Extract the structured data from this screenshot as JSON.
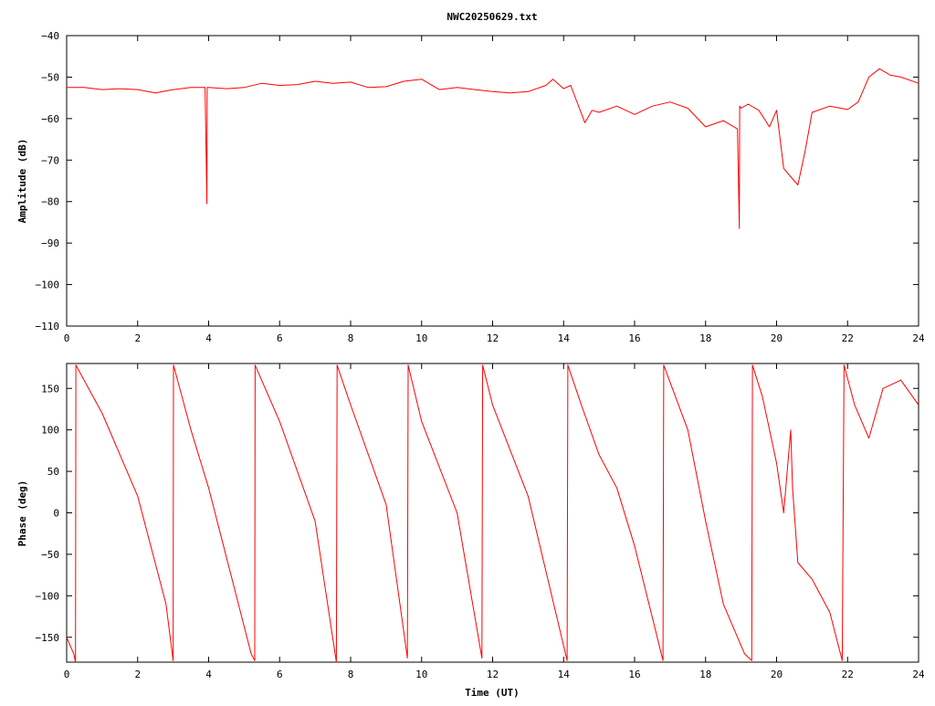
{
  "chart_data": [
    {
      "type": "line",
      "title": "NWC20250629.txt",
      "xlabel": "",
      "ylabel": "Amplitude (dB)",
      "xlim": [
        0,
        24
      ],
      "ylim": [
        -110,
        -40
      ],
      "x_ticks": [
        "0",
        "2",
        "4",
        "6",
        "8",
        "10",
        "12",
        "14",
        "16",
        "18",
        "20",
        "22",
        "24"
      ],
      "y_ticks": [
        "−110",
        "−100",
        "−90",
        "−80",
        "−70",
        "−60",
        "−50",
        "−40"
      ],
      "line_color": "#ff0000",
      "grid": false,
      "series": [
        {
          "x": [
            0,
            0.5,
            1,
            1.5,
            2,
            2.5,
            3,
            3.5,
            3.9,
            3.95,
            3.96,
            4.0,
            4.5,
            5,
            5.5,
            6,
            6.5,
            7,
            7.5,
            8,
            8.5,
            9,
            9.5,
            10,
            10.5,
            11,
            11.5,
            12,
            12.5,
            13,
            13.5,
            13.7,
            14,
            14.2,
            14.4,
            14.6,
            14.8,
            15,
            15.5,
            16,
            16.5,
            17,
            17.5,
            18,
            18.5,
            18.9,
            18.95,
            18.96,
            19.0,
            19.2,
            19.5,
            19.8,
            20,
            20.2,
            20.4,
            20.6,
            20.8,
            21,
            21.5,
            22,
            22.3,
            22.6,
            22.9,
            23.2,
            23.5,
            24
          ],
          "y": [
            -52.5,
            -52.5,
            -53,
            -52.8,
            -53,
            -53.8,
            -53,
            -52.5,
            -52.5,
            -80.5,
            -52.5,
            -52.5,
            -52.8,
            -52.5,
            -51.5,
            -52,
            -51.8,
            -51,
            -51.5,
            -51.2,
            -52.5,
            -52.3,
            -51,
            -50.5,
            -53,
            -52.5,
            -53,
            -53.5,
            -53.8,
            -53.5,
            -52,
            -50.5,
            -52.8,
            -52,
            -56.5,
            -61,
            -58,
            -58.5,
            -57,
            -59,
            -57,
            -56,
            -57.5,
            -62,
            -60.5,
            -62.5,
            -86.5,
            -57,
            -57.5,
            -56.5,
            -58,
            -62,
            -58,
            -72,
            -74,
            -76,
            -68,
            -58.5,
            -57,
            -57.8,
            -56,
            -50,
            -48,
            -49.5,
            -50,
            -51.5
          ]
        }
      ]
    },
    {
      "type": "line",
      "title": "",
      "xlabel": "Time (UT)",
      "ylabel": "Phase (deg)",
      "xlim": [
        0,
        24
      ],
      "ylim": [
        -180,
        180
      ],
      "x_ticks": [
        "0",
        "2",
        "4",
        "6",
        "8",
        "10",
        "12",
        "14",
        "16",
        "18",
        "20",
        "22",
        "24"
      ],
      "y_ticks": [
        "−150",
        "−100",
        "−50",
        "0",
        "50",
        "100",
        "150"
      ],
      "line_color": "#ff0000",
      "grid": false,
      "series": [
        {
          "x": [
            0,
            0.2,
            0.25,
            0.26,
            1,
            2,
            2.8,
            3,
            3.01,
            3.5,
            4,
            5.2,
            5.3,
            5.31,
            6,
            7,
            7.6,
            7.62,
            8,
            9,
            9.6,
            9.62,
            10,
            11,
            11.7,
            11.72,
            12,
            13,
            14.1,
            14.12,
            14.5,
            15,
            15.5,
            16,
            16.8,
            16.82,
            17.5,
            18,
            18.5,
            19.1,
            19.3,
            19.32,
            19.6,
            20,
            20.2,
            20.4,
            20.45,
            20.6,
            21,
            21.5,
            21.85,
            21.9,
            22.2,
            22.6,
            23,
            23.5,
            24
          ],
          "y": [
            -150,
            -170,
            -180,
            178,
            120,
            20,
            -110,
            -178,
            178,
            100,
            30,
            -170,
            -178,
            178,
            110,
            -10,
            -180,
            178,
            130,
            10,
            -175,
            178,
            110,
            0,
            -175,
            178,
            130,
            20,
            -178,
            178,
            130,
            70,
            30,
            -40,
            -178,
            178,
            100,
            -10,
            -110,
            -170,
            -178,
            178,
            140,
            60,
            0,
            100,
            30,
            -60,
            -80,
            -120,
            -178,
            178,
            130,
            90,
            150,
            160,
            130
          ]
        }
      ]
    }
  ]
}
